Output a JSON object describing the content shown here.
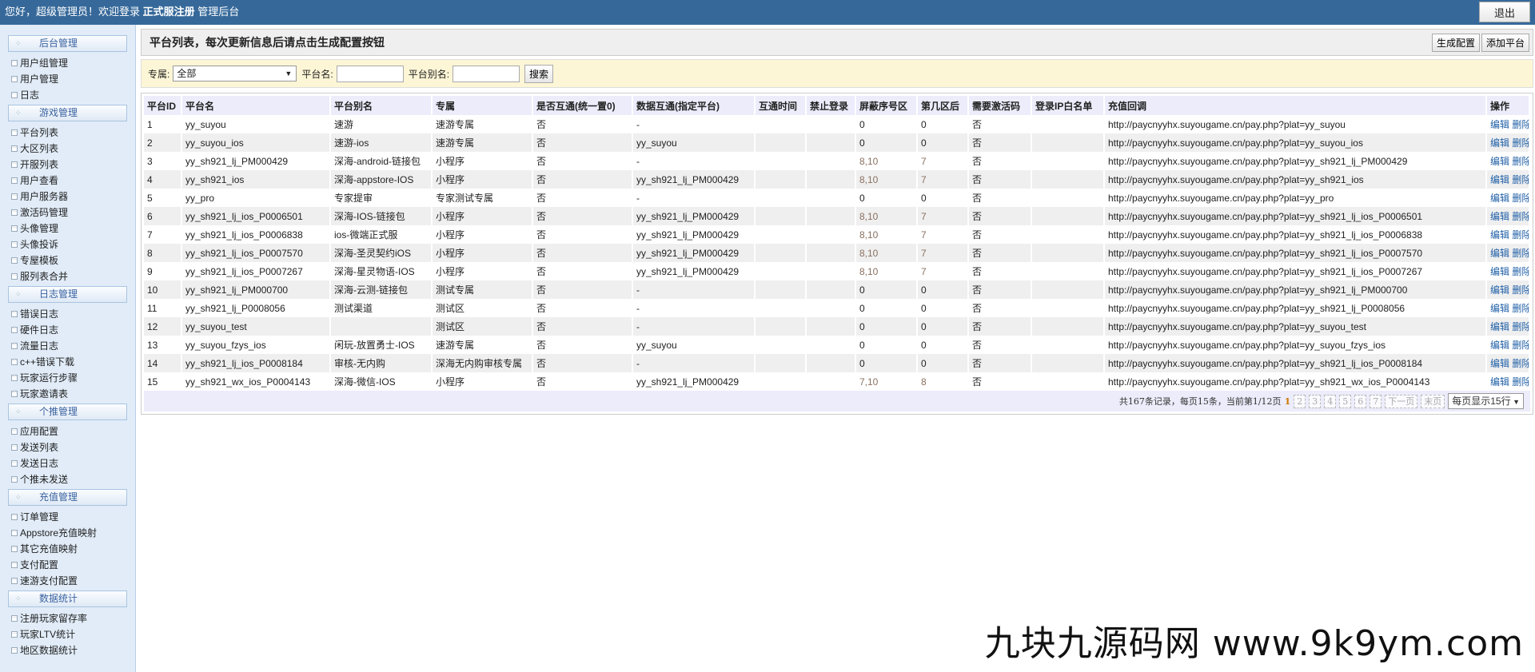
{
  "topbar": {
    "greeting": "您好，超级管理员！欢迎登录",
    "brand": "正式服注册",
    "suffix": "管理后台",
    "logout": "退出"
  },
  "sidebar": [
    {
      "title": "后台管理",
      "items": [
        "用户组管理",
        "用户管理",
        "日志"
      ]
    },
    {
      "title": "游戏管理",
      "items": [
        "平台列表",
        "大区列表",
        "开服列表",
        "用户查看",
        "用户服务器",
        "激活码管理",
        "头像管理",
        "头像投诉",
        "专屋模板",
        "服列表合并"
      ]
    },
    {
      "title": "日志管理",
      "items": [
        "错误日志",
        "硬件日志",
        "流量日志",
        "c++错误下载",
        "玩家运行步骤",
        "玩家邀请表"
      ]
    },
    {
      "title": "个推管理",
      "items": [
        "应用配置",
        "发送列表",
        "发送日志",
        "个推未发送"
      ]
    },
    {
      "title": "充值管理",
      "items": [
        "订单管理",
        "Appstore充值映射",
        "其它充值映射",
        "支付配置",
        "速游支付配置"
      ]
    },
    {
      "title": "数据统计",
      "items": [
        "注册玩家留存率",
        "玩家LTV统计",
        "地区数据统计"
      ]
    }
  ],
  "main": {
    "title": "平台列表，每次更新信息后请点击生成配置按钮",
    "generate": "生成配置",
    "add": "添加平台"
  },
  "filter": {
    "exclusive_label": "专属:",
    "exclusive_value": "全部",
    "name_label": "平台名:",
    "alias_label": "平台别名:",
    "search": "搜索"
  },
  "table": {
    "headers": [
      "平台ID",
      "平台名",
      "平台别名",
      "专属",
      "是否互通(统一置0)",
      "数据互通(指定平台)",
      "互通时间",
      "禁止登录",
      "屏蔽序号区",
      "第几区后",
      "需要激活码",
      "登录IP白名单",
      "充值回调",
      "操作"
    ],
    "edit": "编辑",
    "delete": "删除",
    "rows": [
      [
        "1",
        "yy_suyou",
        "速游",
        "速游专属",
        "否",
        "-",
        "",
        "",
        "0",
        "0",
        "否",
        "",
        "http://paycnyyhx.suyougame.cn/pay.php?plat=yy_suyou"
      ],
      [
        "2",
        "yy_suyou_ios",
        "速游-ios",
        "速游专属",
        "否",
        "yy_suyou",
        "",
        "",
        "0",
        "0",
        "否",
        "",
        "http://paycnyyhx.suyougame.cn/pay.php?plat=yy_suyou_ios"
      ],
      [
        "3",
        "yy_sh921_lj_PM000429",
        "深海-android-链接包",
        "小程序",
        "否",
        "-",
        "",
        "",
        "8,10",
        "7",
        "否",
        "",
        "http://paycnyyhx.suyougame.cn/pay.php?plat=yy_sh921_lj_PM000429"
      ],
      [
        "4",
        "yy_sh921_ios",
        "深海-appstore-IOS",
        "小程序",
        "否",
        "yy_sh921_lj_PM000429",
        "",
        "",
        "8,10",
        "7",
        "否",
        "",
        "http://paycnyyhx.suyougame.cn/pay.php?plat=yy_sh921_ios"
      ],
      [
        "5",
        "yy_pro",
        "专家提审",
        "专家测试专属",
        "否",
        "-",
        "",
        "",
        "0",
        "0",
        "否",
        "",
        "http://paycnyyhx.suyougame.cn/pay.php?plat=yy_pro"
      ],
      [
        "6",
        "yy_sh921_lj_ios_P0006501",
        "深海-IOS-链接包",
        "小程序",
        "否",
        "yy_sh921_lj_PM000429",
        "",
        "",
        "8,10",
        "7",
        "否",
        "",
        "http://paycnyyhx.suyougame.cn/pay.php?plat=yy_sh921_lj_ios_P0006501"
      ],
      [
        "7",
        "yy_sh921_lj_ios_P0006838",
        "ios-微端正式服",
        "小程序",
        "否",
        "yy_sh921_lj_PM000429",
        "",
        "",
        "8,10",
        "7",
        "否",
        "",
        "http://paycnyyhx.suyougame.cn/pay.php?plat=yy_sh921_lj_ios_P0006838"
      ],
      [
        "8",
        "yy_sh921_lj_ios_P0007570",
        "深海-圣灵契约iOS",
        "小程序",
        "否",
        "yy_sh921_lj_PM000429",
        "",
        "",
        "8,10",
        "7",
        "否",
        "",
        "http://paycnyyhx.suyougame.cn/pay.php?plat=yy_sh921_lj_ios_P0007570"
      ],
      [
        "9",
        "yy_sh921_lj_ios_P0007267",
        "深海-星灵物语-IOS",
        "小程序",
        "否",
        "yy_sh921_lj_PM000429",
        "",
        "",
        "8,10",
        "7",
        "否",
        "",
        "http://paycnyyhx.suyougame.cn/pay.php?plat=yy_sh921_lj_ios_P0007267"
      ],
      [
        "10",
        "yy_sh921_lj_PM000700",
        "深海-云测-链接包",
        "测试专属",
        "否",
        "-",
        "",
        "",
        "0",
        "0",
        "否",
        "",
        "http://paycnyyhx.suyougame.cn/pay.php?plat=yy_sh921_lj_PM000700"
      ],
      [
        "11",
        "yy_sh921_lj_P0008056",
        "测试渠道",
        "测试区",
        "否",
        "-",
        "",
        "",
        "0",
        "0",
        "否",
        "",
        "http://paycnyyhx.suyougame.cn/pay.php?plat=yy_sh921_lj_P0008056"
      ],
      [
        "12",
        "yy_suyou_test",
        "",
        "测试区",
        "否",
        "-",
        "",
        "",
        "0",
        "0",
        "否",
        "",
        "http://paycnyyhx.suyougame.cn/pay.php?plat=yy_suyou_test"
      ],
      [
        "13",
        "yy_suyou_fzys_ios",
        "闲玩-放置勇士-IOS",
        "速游专属",
        "否",
        "yy_suyou",
        "",
        "",
        "0",
        "0",
        "否",
        "",
        "http://paycnyyhx.suyougame.cn/pay.php?plat=yy_suyou_fzys_ios"
      ],
      [
        "14",
        "yy_sh921_lj_ios_P0008184",
        "审核-无内购",
        "深海无内购审核专属",
        "否",
        "-",
        "",
        "",
        "0",
        "0",
        "否",
        "",
        "http://paycnyyhx.suyougame.cn/pay.php?plat=yy_sh921_lj_ios_P0008184"
      ],
      [
        "15",
        "yy_sh921_wx_ios_P0004143",
        "深海-微信-IOS",
        "小程序",
        "否",
        "yy_sh921_lj_PM000429",
        "",
        "",
        "7,10",
        "8",
        "否",
        "",
        "http://paycnyyhx.suyougame.cn/pay.php?plat=yy_sh921_wx_ios_P0004143"
      ]
    ]
  },
  "pager": {
    "summary": "共167条记录，每页15条，当前第1/12页",
    "current": "1",
    "pages": [
      "2",
      "3",
      "4",
      "5",
      "6",
      "7"
    ],
    "next": "下一页",
    "last": "末页",
    "per_page": "每页显示15行"
  },
  "watermark": "九块九源码网 www.9k9ym.com",
  "colors": {
    "topbar": "#36699a",
    "sidebar": "#e1ecf8",
    "filter": "#fdf6d6",
    "link": "#1f5fa6",
    "header_row": "#ececfb"
  }
}
